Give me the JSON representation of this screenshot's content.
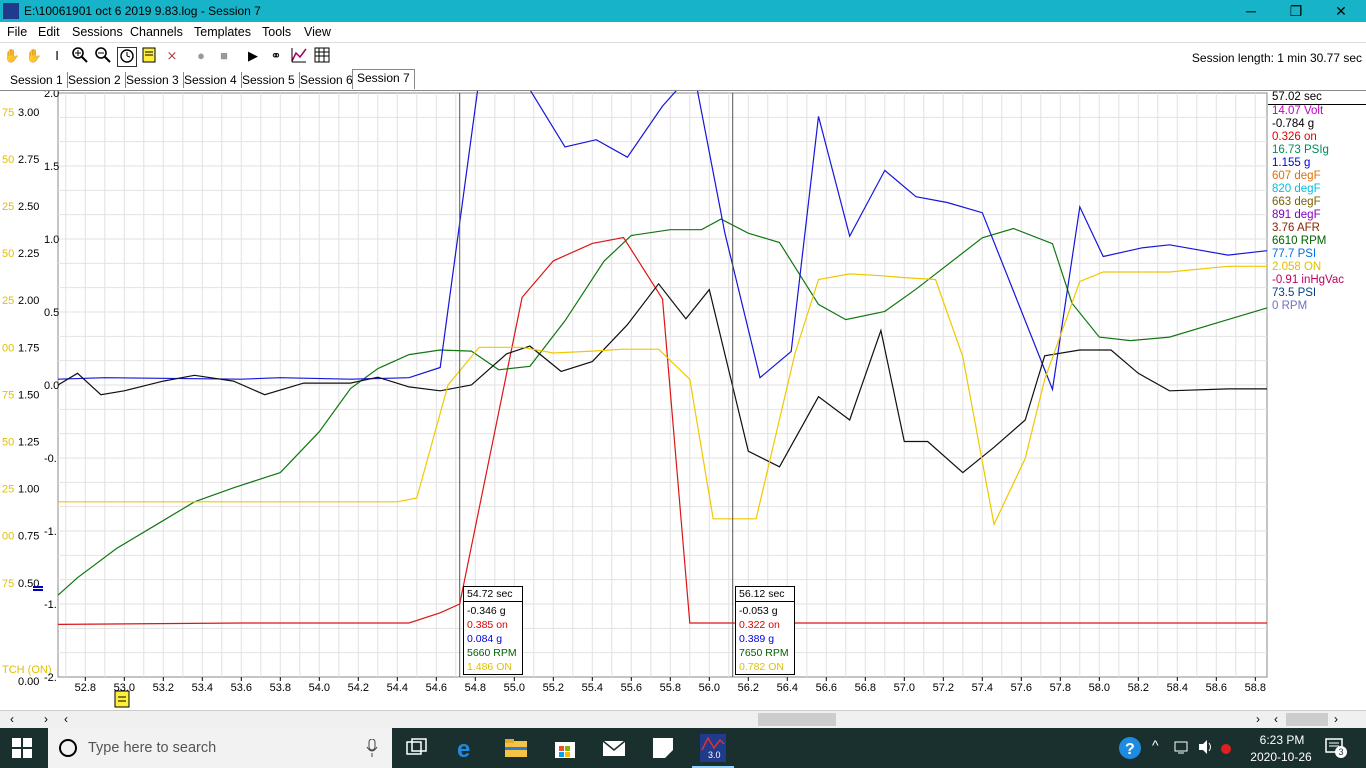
{
  "window": {
    "title": "E:\\10061901 oct 6 2019 9.83.log - Session 7",
    "minimize": "─",
    "restore": "❐",
    "close": "✕"
  },
  "menu": [
    "File",
    "Edit",
    "Sessions",
    "Channels",
    "Templates",
    "Tools",
    "View"
  ],
  "toolbar": {
    "session_length": "Session length:  1 min 30.77 sec",
    "icons": [
      "hand-icon",
      "hand-grey-icon",
      "text-cursor-icon",
      "zoom-in-icon",
      "zoom-out-icon",
      "clock-icon",
      "note-icon",
      "markers-icon",
      "record-icon",
      "stop-icon",
      "play-icon",
      "binoculars-icon",
      "graph-icon",
      "grid-icon"
    ]
  },
  "tabs": [
    "Session 1",
    "Session 2",
    "Session 3",
    "Session 4",
    "Session 5",
    "Session 6",
    "Session 7"
  ],
  "readout": {
    "time": "57.02 sec",
    "channels": [
      {
        "text": "14.07 Volt",
        "color": "#c000c0"
      },
      {
        "text": "-0.784 g",
        "color": "#000000"
      },
      {
        "text": "0.326 on",
        "color": "#e00000"
      },
      {
        "text": "16.73 PSIg",
        "color": "#008b5c"
      },
      {
        "text": "1.155 g",
        "color": "#0000e0"
      },
      {
        "text": "607 degF",
        "color": "#e07000"
      },
      {
        "text": "820 degF",
        "color": "#00c0e0"
      },
      {
        "text": "663 degF",
        "color": "#7a6000"
      },
      {
        "text": "891 degF",
        "color": "#8000c0"
      },
      {
        "text": "3.76 AFR",
        "color": "#8b2000"
      },
      {
        "text": "6610 RPM",
        "color": "#006000"
      },
      {
        "text": "77.7 PSI",
        "color": "#0070e0"
      },
      {
        "text": "2.058 ON",
        "color": "#e0c000"
      },
      {
        "text": "-0.91 inHgVac",
        "color": "#c00060"
      },
      {
        "text": "73.5 PSI",
        "color": "#004080"
      },
      {
        "text": "0 RPM",
        "color": "#7070c0"
      }
    ]
  },
  "cursor_boxes": [
    {
      "time": "54.72 sec",
      "lines": [
        {
          "text": "-0.346 g",
          "color": "#000000"
        },
        {
          "text": "0.385 on",
          "color": "#e00000"
        },
        {
          "text": "0.084 g",
          "color": "#0000e0"
        },
        {
          "text": "5660 RPM",
          "color": "#006000"
        },
        {
          "text": "1.486 ON",
          "color": "#e0c000"
        }
      ]
    },
    {
      "time": "56.12 sec",
      "lines": [
        {
          "text": "-0.053 g",
          "color": "#000000"
        },
        {
          "text": "0.322 on",
          "color": "#e00000"
        },
        {
          "text": "0.389 g",
          "color": "#0000e0"
        },
        {
          "text": "7650 RPM",
          "color": "#006000"
        },
        {
          "text": "0.782 ON",
          "color": "#e0c000"
        }
      ]
    }
  ],
  "taskbar": {
    "search_placeholder": "Type here to search",
    "time": "6:23 PM",
    "date": "2020-10-26",
    "notifications": "3",
    "app_badge": "3.0"
  },
  "chart_data": {
    "type": "line",
    "x_ticks": [
      "52.8",
      "53.0",
      "53.2",
      "53.4",
      "53.6",
      "53.8",
      "54.0",
      "54.2",
      "54.4",
      "54.6",
      "54.8",
      "55.0",
      "55.2",
      "55.4",
      "55.6",
      "55.8",
      "56.0",
      "56.2",
      "56.4",
      "56.6",
      "56.8",
      "57.0",
      "57.2",
      "57.4",
      "57.6",
      "57.8",
      "58.0",
      "58.2",
      "58.4",
      "58.6",
      "58.8"
    ],
    "xlim": [
      52.66,
      58.86
    ],
    "y_axis_yellow": {
      "ticks": [
        "3.00",
        "2.75",
        "2.50",
        "2.25",
        "2.00",
        "1.75",
        "1.50",
        "1.25",
        "1.00",
        "0.75",
        "0.50",
        "0.00"
      ],
      "partial": [
        "0",
        "75",
        "50",
        "25",
        "50",
        "25",
        "00",
        "75",
        "50",
        "25",
        "00",
        "75",
        "50",
        "25",
        "00"
      ],
      "label": "TCH (ON)"
    },
    "y_axis_g": {
      "ticks": [
        "2.0",
        "1.5",
        "1.0",
        "0.5",
        "0.0",
        "-0.",
        "-1.",
        "-1.",
        "-2."
      ]
    },
    "y_range_left": [
      0,
      3.1
    ],
    "cursors_x": [
      54.72,
      56.12
    ],
    "series": [
      {
        "name": "RPM",
        "color": "#117711",
        "ylim": [
          4000,
          9000
        ],
        "points": [
          [
            52.66,
            4700
          ],
          [
            52.76,
            4850
          ],
          [
            52.96,
            5100
          ],
          [
            53.16,
            5300
          ],
          [
            53.36,
            5500
          ],
          [
            53.56,
            5620
          ],
          [
            53.8,
            5750
          ],
          [
            54.0,
            6100
          ],
          [
            54.16,
            6470
          ],
          [
            54.3,
            6640
          ],
          [
            54.46,
            6760
          ],
          [
            54.62,
            6800
          ],
          [
            54.78,
            6790
          ],
          [
            54.92,
            6630
          ],
          [
            55.08,
            6660
          ],
          [
            55.26,
            7050
          ],
          [
            55.46,
            7560
          ],
          [
            55.6,
            7780
          ],
          [
            55.8,
            7830
          ],
          [
            55.96,
            7830
          ],
          [
            56.06,
            7920
          ],
          [
            56.2,
            7800
          ],
          [
            56.36,
            7720
          ],
          [
            56.56,
            7190
          ],
          [
            56.7,
            7060
          ],
          [
            56.9,
            7130
          ],
          [
            57.06,
            7320
          ],
          [
            57.4,
            7760
          ],
          [
            57.56,
            7840
          ],
          [
            57.76,
            7710
          ],
          [
            57.86,
            7200
          ],
          [
            58.0,
            6910
          ],
          [
            58.16,
            6880
          ],
          [
            58.36,
            6910
          ],
          [
            58.66,
            7060
          ],
          [
            58.86,
            7160
          ]
        ]
      },
      {
        "name": "g (blue)",
        "color": "#1515dd",
        "ylim": [
          -1.5,
          2.5
        ],
        "points": [
          [
            52.66,
            0.54
          ],
          [
            52.9,
            0.55
          ],
          [
            53.6,
            0.54
          ],
          [
            53.8,
            0.55
          ],
          [
            54.16,
            0.54
          ],
          [
            54.46,
            0.55
          ],
          [
            54.62,
            0.62
          ],
          [
            54.82,
            2.6
          ],
          [
            55.04,
            2.61
          ],
          [
            55.26,
            2.13
          ],
          [
            55.42,
            2.18
          ],
          [
            55.58,
            2.06
          ],
          [
            55.76,
            2.41
          ],
          [
            55.92,
            2.65
          ],
          [
            56.08,
            1.54
          ],
          [
            56.26,
            0.55
          ],
          [
            56.42,
            0.73
          ],
          [
            56.56,
            2.34
          ],
          [
            56.72,
            1.52
          ],
          [
            56.9,
            1.97
          ],
          [
            57.06,
            1.79
          ],
          [
            57.22,
            1.75
          ],
          [
            57.4,
            1.68
          ],
          [
            57.76,
            0.47
          ],
          [
            57.9,
            1.72
          ],
          [
            58.02,
            1.38
          ],
          [
            58.22,
            1.44
          ],
          [
            58.36,
            1.46
          ],
          [
            58.66,
            1.39
          ],
          [
            58.86,
            1.42
          ]
        ]
      },
      {
        "name": "on",
        "color": "#dd1515",
        "ylim": [
          0,
          4
        ],
        "points": [
          [
            52.66,
            0.36
          ],
          [
            53.6,
            0.37
          ],
          [
            54.2,
            0.37
          ],
          [
            54.46,
            0.37
          ],
          [
            54.62,
            0.44
          ],
          [
            54.72,
            0.5
          ],
          [
            55.04,
            2.6
          ],
          [
            55.2,
            2.85
          ],
          [
            55.4,
            2.97
          ],
          [
            55.56,
            3.01
          ],
          [
            55.76,
            2.59
          ],
          [
            55.9,
            0.37
          ],
          [
            56.06,
            0.37
          ],
          [
            56.2,
            0.37
          ],
          [
            56.56,
            0.37
          ],
          [
            57.2,
            0.37
          ],
          [
            57.6,
            0.37
          ],
          [
            58.86,
            0.37
          ]
        ]
      },
      {
        "name": "g (black)",
        "color": "#111111",
        "ylim": [
          -2.0,
          1.0
        ],
        "points": [
          [
            52.66,
            -0.5
          ],
          [
            52.76,
            -0.44
          ],
          [
            52.88,
            -0.55
          ],
          [
            53.0,
            -0.53
          ],
          [
            53.2,
            -0.48
          ],
          [
            53.36,
            -0.45
          ],
          [
            53.56,
            -0.48
          ],
          [
            53.72,
            -0.55
          ],
          [
            53.92,
            -0.49
          ],
          [
            54.16,
            -0.49
          ],
          [
            54.3,
            -0.46
          ],
          [
            54.46,
            -0.51
          ],
          [
            54.62,
            -0.53
          ],
          [
            54.78,
            -0.5
          ],
          [
            54.96,
            -0.34
          ],
          [
            55.08,
            -0.3
          ],
          [
            55.24,
            -0.43
          ],
          [
            55.4,
            -0.38
          ],
          [
            55.58,
            -0.19
          ],
          [
            55.74,
            0.02
          ],
          [
            55.88,
            -0.16
          ],
          [
            56.0,
            -0.01
          ],
          [
            56.2,
            -0.84
          ],
          [
            56.36,
            -0.92
          ],
          [
            56.56,
            -0.56
          ],
          [
            56.72,
            -0.68
          ],
          [
            56.88,
            -0.22
          ],
          [
            57.0,
            -0.79
          ],
          [
            57.12,
            -0.79
          ],
          [
            57.3,
            -0.95
          ],
          [
            57.46,
            -0.82
          ],
          [
            57.62,
            -0.68
          ],
          [
            57.72,
            -0.35
          ],
          [
            57.9,
            -0.32
          ],
          [
            58.06,
            -0.32
          ],
          [
            58.2,
            -0.44
          ],
          [
            58.36,
            -0.53
          ],
          [
            58.66,
            -0.52
          ],
          [
            58.86,
            -0.52
          ]
        ]
      },
      {
        "name": "ON",
        "color": "#f0c800",
        "ylim": [
          0,
          3.1
        ],
        "points": [
          [
            52.66,
            0.93
          ],
          [
            53.6,
            0.93
          ],
          [
            53.8,
            0.93
          ],
          [
            54.4,
            0.93
          ],
          [
            54.5,
            0.95
          ],
          [
            54.66,
            1.55
          ],
          [
            54.82,
            1.75
          ],
          [
            55.04,
            1.75
          ],
          [
            55.2,
            1.72
          ],
          [
            55.4,
            1.73
          ],
          [
            55.56,
            1.74
          ],
          [
            55.74,
            1.74
          ],
          [
            55.9,
            1.58
          ],
          [
            56.02,
            0.84
          ],
          [
            56.14,
            0.84
          ],
          [
            56.24,
            0.84
          ],
          [
            56.44,
            1.72
          ],
          [
            56.56,
            2.11
          ],
          [
            56.72,
            2.14
          ],
          [
            56.88,
            2.13
          ],
          [
            57.0,
            2.12
          ],
          [
            57.16,
            2.11
          ],
          [
            57.3,
            1.7
          ],
          [
            57.46,
            0.81
          ],
          [
            57.62,
            1.16
          ],
          [
            57.72,
            1.58
          ],
          [
            57.9,
            2.1
          ],
          [
            58.02,
            2.15
          ],
          [
            58.36,
            2.15
          ],
          [
            58.66,
            2.18
          ],
          [
            58.86,
            2.18
          ]
        ]
      }
    ]
  }
}
